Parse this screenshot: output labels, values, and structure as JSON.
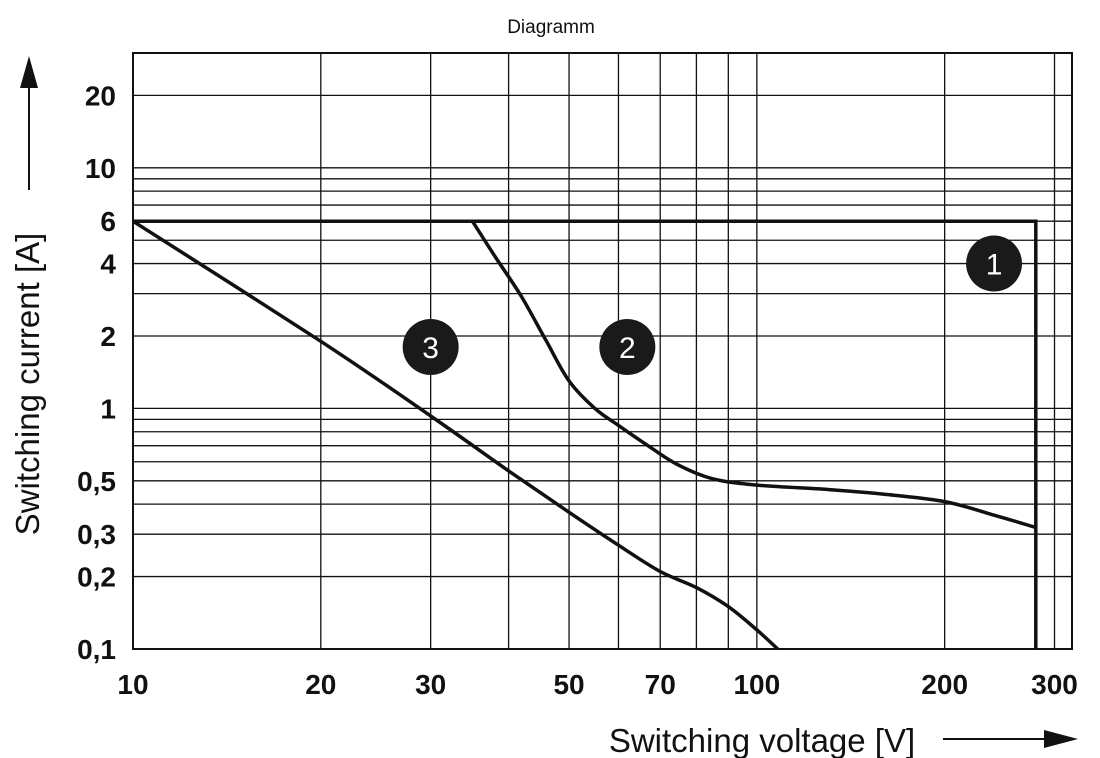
{
  "chart_data": {
    "type": "line",
    "title": "Diagramm",
    "xlabel": "Switching voltage [V]",
    "ylabel": "Switching current [A]",
    "x_scale": "log",
    "y_scale": "log",
    "xlim": [
      10,
      320
    ],
    "ylim": [
      0.1,
      30
    ],
    "grid": true,
    "x_ticks": [
      {
        "value": 10,
        "label": "10"
      },
      {
        "value": 20,
        "label": "20"
      },
      {
        "value": 30,
        "label": "30"
      },
      {
        "value": 50,
        "label": "50"
      },
      {
        "value": 70,
        "label": "70"
      },
      {
        "value": 100,
        "label": "100"
      },
      {
        "value": 200,
        "label": "200"
      },
      {
        "value": 300,
        "label": "300"
      }
    ],
    "y_ticks": [
      {
        "value": 0.1,
        "label": "0,1"
      },
      {
        "value": 0.2,
        "label": "0,2"
      },
      {
        "value": 0.3,
        "label": "0,3"
      },
      {
        "value": 0.5,
        "label": "0,5"
      },
      {
        "value": 1,
        "label": "1"
      },
      {
        "value": 2,
        "label": "2"
      },
      {
        "value": 4,
        "label": "4"
      },
      {
        "value": 6,
        "label": "6"
      },
      {
        "value": 10,
        "label": "10"
      },
      {
        "value": 20,
        "label": "20"
      }
    ],
    "x_grid": [
      10,
      20,
      30,
      40,
      50,
      60,
      70,
      80,
      90,
      100,
      200,
      300
    ],
    "y_grid": [
      0.1,
      0.2,
      0.3,
      0.4,
      0.5,
      0.6,
      0.7,
      0.8,
      0.9,
      1,
      2,
      3,
      4,
      5,
      6,
      7,
      8,
      9,
      10,
      20
    ],
    "series": [
      {
        "name": "1",
        "x": [
          10,
          280,
          280
        ],
        "y": [
          6,
          6,
          0.1
        ]
      },
      {
        "name": "2",
        "x": [
          35,
          38,
          42,
          46,
          50,
          55,
          60,
          68,
          75,
          85,
          100,
          130,
          160,
          200,
          240,
          280
        ],
        "y": [
          6,
          4.3,
          2.9,
          1.9,
          1.3,
          1.0,
          0.85,
          0.68,
          0.58,
          0.51,
          0.48,
          0.46,
          0.44,
          0.41,
          0.36,
          0.32
        ]
      },
      {
        "name": "3",
        "x": [
          10,
          20,
          30,
          40,
          50,
          60,
          70,
          80,
          90,
          100,
          108
        ],
        "y": [
          6,
          1.9,
          0.93,
          0.55,
          0.37,
          0.27,
          0.21,
          0.18,
          0.15,
          0.12,
          0.1
        ]
      }
    ],
    "markers": [
      {
        "label": "1",
        "x": 240,
        "y": 4
      },
      {
        "label": "2",
        "x": 62,
        "y": 1.8
      },
      {
        "label": "3",
        "x": 30,
        "y": 1.8
      }
    ]
  }
}
